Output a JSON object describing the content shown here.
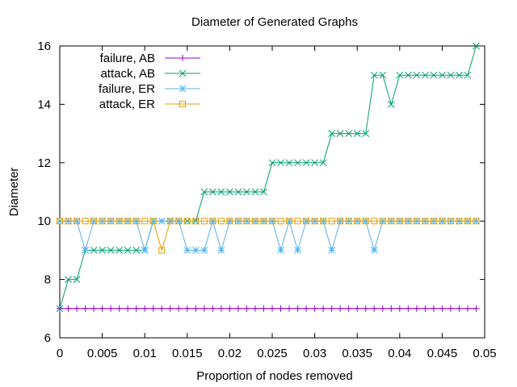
{
  "chart_data": {
    "type": "line",
    "title": "Diameter of Generated Graphs",
    "xlabel": "Proportion of nodes removed",
    "ylabel": "Diameter",
    "xlim": [
      0,
      0.05
    ],
    "ylim": [
      6,
      16
    ],
    "xticks": [
      "0",
      "0.005",
      "0.01",
      "0.015",
      "0.02",
      "0.025",
      "0.03",
      "0.035",
      "0.04",
      "0.045",
      "0.05"
    ],
    "yticks": [
      "6",
      "8",
      "10",
      "12",
      "14",
      "16"
    ],
    "grid": false,
    "legend_position": "top-left",
    "x": [
      0,
      0.001,
      0.002,
      0.003,
      0.004,
      0.005,
      0.006,
      0.007,
      0.008,
      0.009,
      0.01,
      0.011,
      0.012,
      0.013,
      0.014,
      0.015,
      0.016,
      0.017,
      0.018,
      0.019,
      0.02,
      0.021,
      0.022,
      0.023,
      0.024,
      0.025,
      0.026,
      0.027,
      0.028,
      0.029,
      0.03,
      0.031,
      0.032,
      0.033,
      0.034,
      0.035,
      0.036,
      0.037,
      0.038,
      0.039,
      0.04,
      0.041,
      0.042,
      0.043,
      0.044,
      0.045,
      0.046,
      0.047,
      0.048,
      0.049
    ],
    "series": [
      {
        "name": "failure, AB",
        "color": "#9400d3",
        "marker": "plus",
        "values": [
          7,
          7,
          7,
          7,
          7,
          7,
          7,
          7,
          7,
          7,
          7,
          7,
          7,
          7,
          7,
          7,
          7,
          7,
          7,
          7,
          7,
          7,
          7,
          7,
          7,
          7,
          7,
          7,
          7,
          7,
          7,
          7,
          7,
          7,
          7,
          7,
          7,
          7,
          7,
          7,
          7,
          7,
          7,
          7,
          7,
          7,
          7,
          7,
          7,
          7
        ]
      },
      {
        "name": "attack, AB",
        "color": "#009e73",
        "marker": "cross",
        "values": [
          7,
          8,
          8,
          9,
          9,
          9,
          9,
          9,
          9,
          9,
          9,
          10,
          10,
          10,
          10,
          10,
          10,
          11,
          11,
          11,
          11,
          11,
          11,
          11,
          11,
          12,
          12,
          12,
          12,
          12,
          12,
          12,
          13,
          13,
          13,
          13,
          13,
          15,
          15,
          14,
          15,
          15,
          15,
          15,
          15,
          15,
          15,
          15,
          15,
          16
        ]
      },
      {
        "name": "failure, ER",
        "color": "#56b4e9",
        "marker": "star",
        "values": [
          10,
          10,
          10,
          9,
          10,
          10,
          10,
          10,
          10,
          10,
          9,
          10,
          10,
          10,
          10,
          9,
          9,
          9,
          10,
          9,
          10,
          10,
          10,
          10,
          10,
          10,
          9,
          10,
          9,
          10,
          10,
          10,
          9,
          10,
          10,
          10,
          10,
          9,
          10,
          10,
          10,
          10,
          10,
          10,
          10,
          10,
          10,
          10,
          10,
          10
        ]
      },
      {
        "name": "attack, ER",
        "color": "#e69f00",
        "marker": "square",
        "values": [
          10,
          10,
          10,
          10,
          10,
          10,
          10,
          10,
          10,
          10,
          10,
          10,
          9,
          10,
          10,
          10,
          10,
          10,
          10,
          10,
          10,
          10,
          10,
          10,
          10,
          10,
          10,
          10,
          10,
          10,
          10,
          10,
          10,
          10,
          10,
          10,
          10,
          10,
          10,
          10,
          10,
          10,
          10,
          10,
          10,
          10,
          10,
          10,
          10,
          10
        ]
      }
    ]
  }
}
